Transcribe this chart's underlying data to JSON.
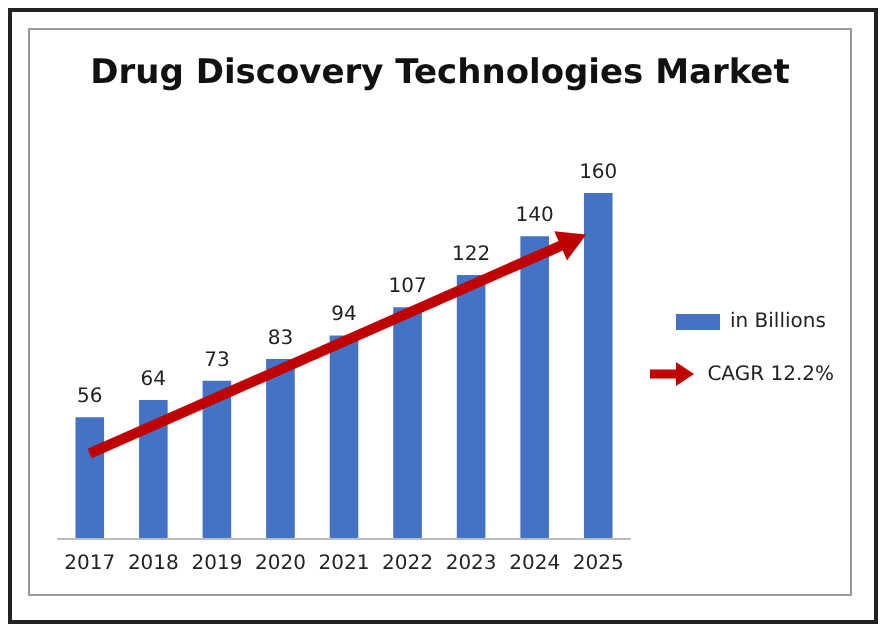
{
  "chart_data": {
    "type": "bar",
    "title": "Drug Discovery Technologies Market",
    "categories": [
      "2017",
      "2018",
      "2019",
      "2020",
      "2021",
      "2022",
      "2023",
      "2024",
      "2025"
    ],
    "series": [
      {
        "name": "in Billions",
        "color": "#4472c4",
        "values": [
          56,
          64,
          73,
          83,
          94,
          107,
          122,
          140,
          160
        ]
      }
    ],
    "annotations": [
      "CAGR 12.2%"
    ],
    "data_labels": true,
    "legend": "right"
  }
}
